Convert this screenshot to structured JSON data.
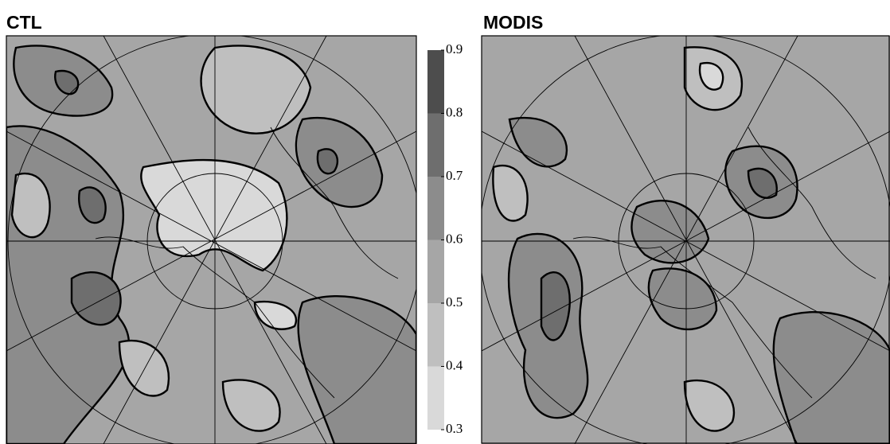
{
  "panels": [
    {
      "title": "CTL"
    },
    {
      "title": "MODIS"
    }
  ],
  "colorbar": {
    "ticks": [
      0.3,
      0.4,
      0.5,
      0.6,
      0.7,
      0.8,
      0.9
    ],
    "colors": [
      "#d9d9d9",
      "#bfbfbf",
      "#a6a6a6",
      "#8c8c8c",
      "#6e6e6e",
      "#4d4d4d"
    ]
  }
}
